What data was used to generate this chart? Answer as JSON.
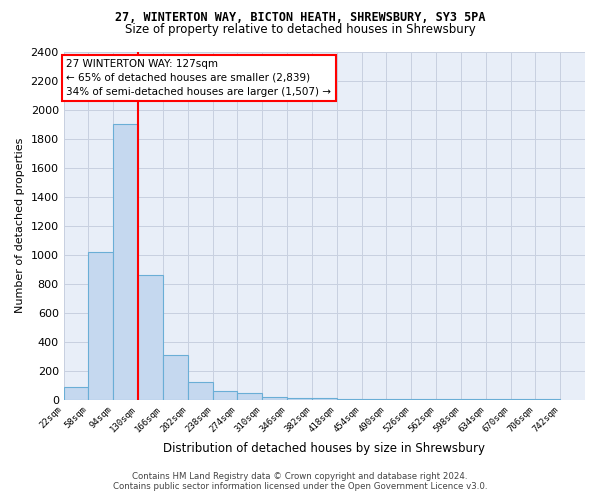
{
  "title1": "27, WINTERTON WAY, BICTON HEATH, SHREWSBURY, SY3 5PA",
  "title2": "Size of property relative to detached houses in Shrewsbury",
  "xlabel": "Distribution of detached houses by size in Shrewsbury",
  "ylabel": "Number of detached properties",
  "bin_labels": [
    "22sqm",
    "58sqm",
    "94sqm",
    "130sqm",
    "166sqm",
    "202sqm",
    "238sqm",
    "274sqm",
    "310sqm",
    "346sqm",
    "382sqm",
    "418sqm",
    "454sqm",
    "490sqm",
    "526sqm",
    "562sqm",
    "598sqm",
    "634sqm",
    "670sqm",
    "706sqm",
    "742sqm"
  ],
  "bin_left_edges": [
    22,
    58,
    94,
    130,
    166,
    202,
    238,
    274,
    310,
    346,
    382,
    418,
    454,
    490,
    526,
    562,
    598,
    634,
    670,
    706,
    742
  ],
  "bar_heights": [
    90,
    1020,
    1900,
    860,
    310,
    120,
    60,
    45,
    20,
    10,
    8,
    5,
    4,
    3,
    2,
    2,
    2,
    1,
    1,
    1
  ],
  "bar_color": "#c5d8ef",
  "bar_edgecolor": "#6aaed6",
  "red_line_x": 130,
  "annotation_text": "27 WINTERTON WAY: 127sqm\n← 65% of detached houses are smaller (2,839)\n34% of semi-detached houses are larger (1,507) →",
  "annotation_box_facecolor": "white",
  "annotation_box_edgecolor": "red",
  "footer_line1": "Contains HM Land Registry data © Crown copyright and database right 2024.",
  "footer_line2": "Contains public sector information licensed under the Open Government Licence v3.0.",
  "ylim": [
    0,
    2400
  ],
  "yticks": [
    0,
    200,
    400,
    600,
    800,
    1000,
    1200,
    1400,
    1600,
    1800,
    2000,
    2200,
    2400
  ],
  "grid_color": "#c8d0e0",
  "background_color": "#e8eef8",
  "bin_width": 36
}
